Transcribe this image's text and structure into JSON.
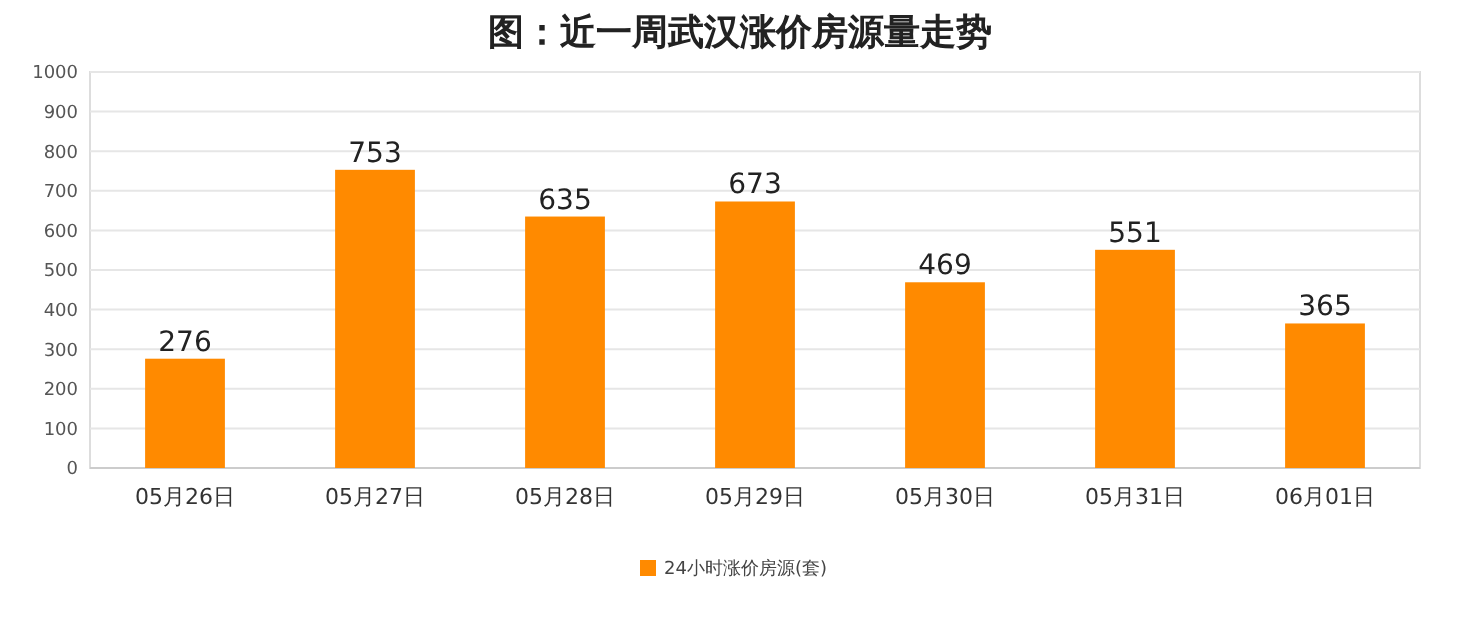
{
  "chart_data": {
    "type": "bar",
    "title": "图：近一周武汉涨价房源量走势",
    "categories": [
      "05月26日",
      "05月27日",
      "05月28日",
      "05月29日",
      "05月30日",
      "05月31日",
      "06月01日"
    ],
    "series": [
      {
        "name": "24小时涨价房源(套)",
        "color": "#ff8a00",
        "values": [
          276,
          753,
          635,
          673,
          469,
          551,
          365
        ]
      }
    ],
    "ylim": [
      0,
      1000
    ],
    "yticks": [
      0,
      100,
      200,
      300,
      400,
      500,
      600,
      700,
      800,
      900,
      1000
    ],
    "grid": "y",
    "legend": "bottom",
    "data_labels": true
  }
}
